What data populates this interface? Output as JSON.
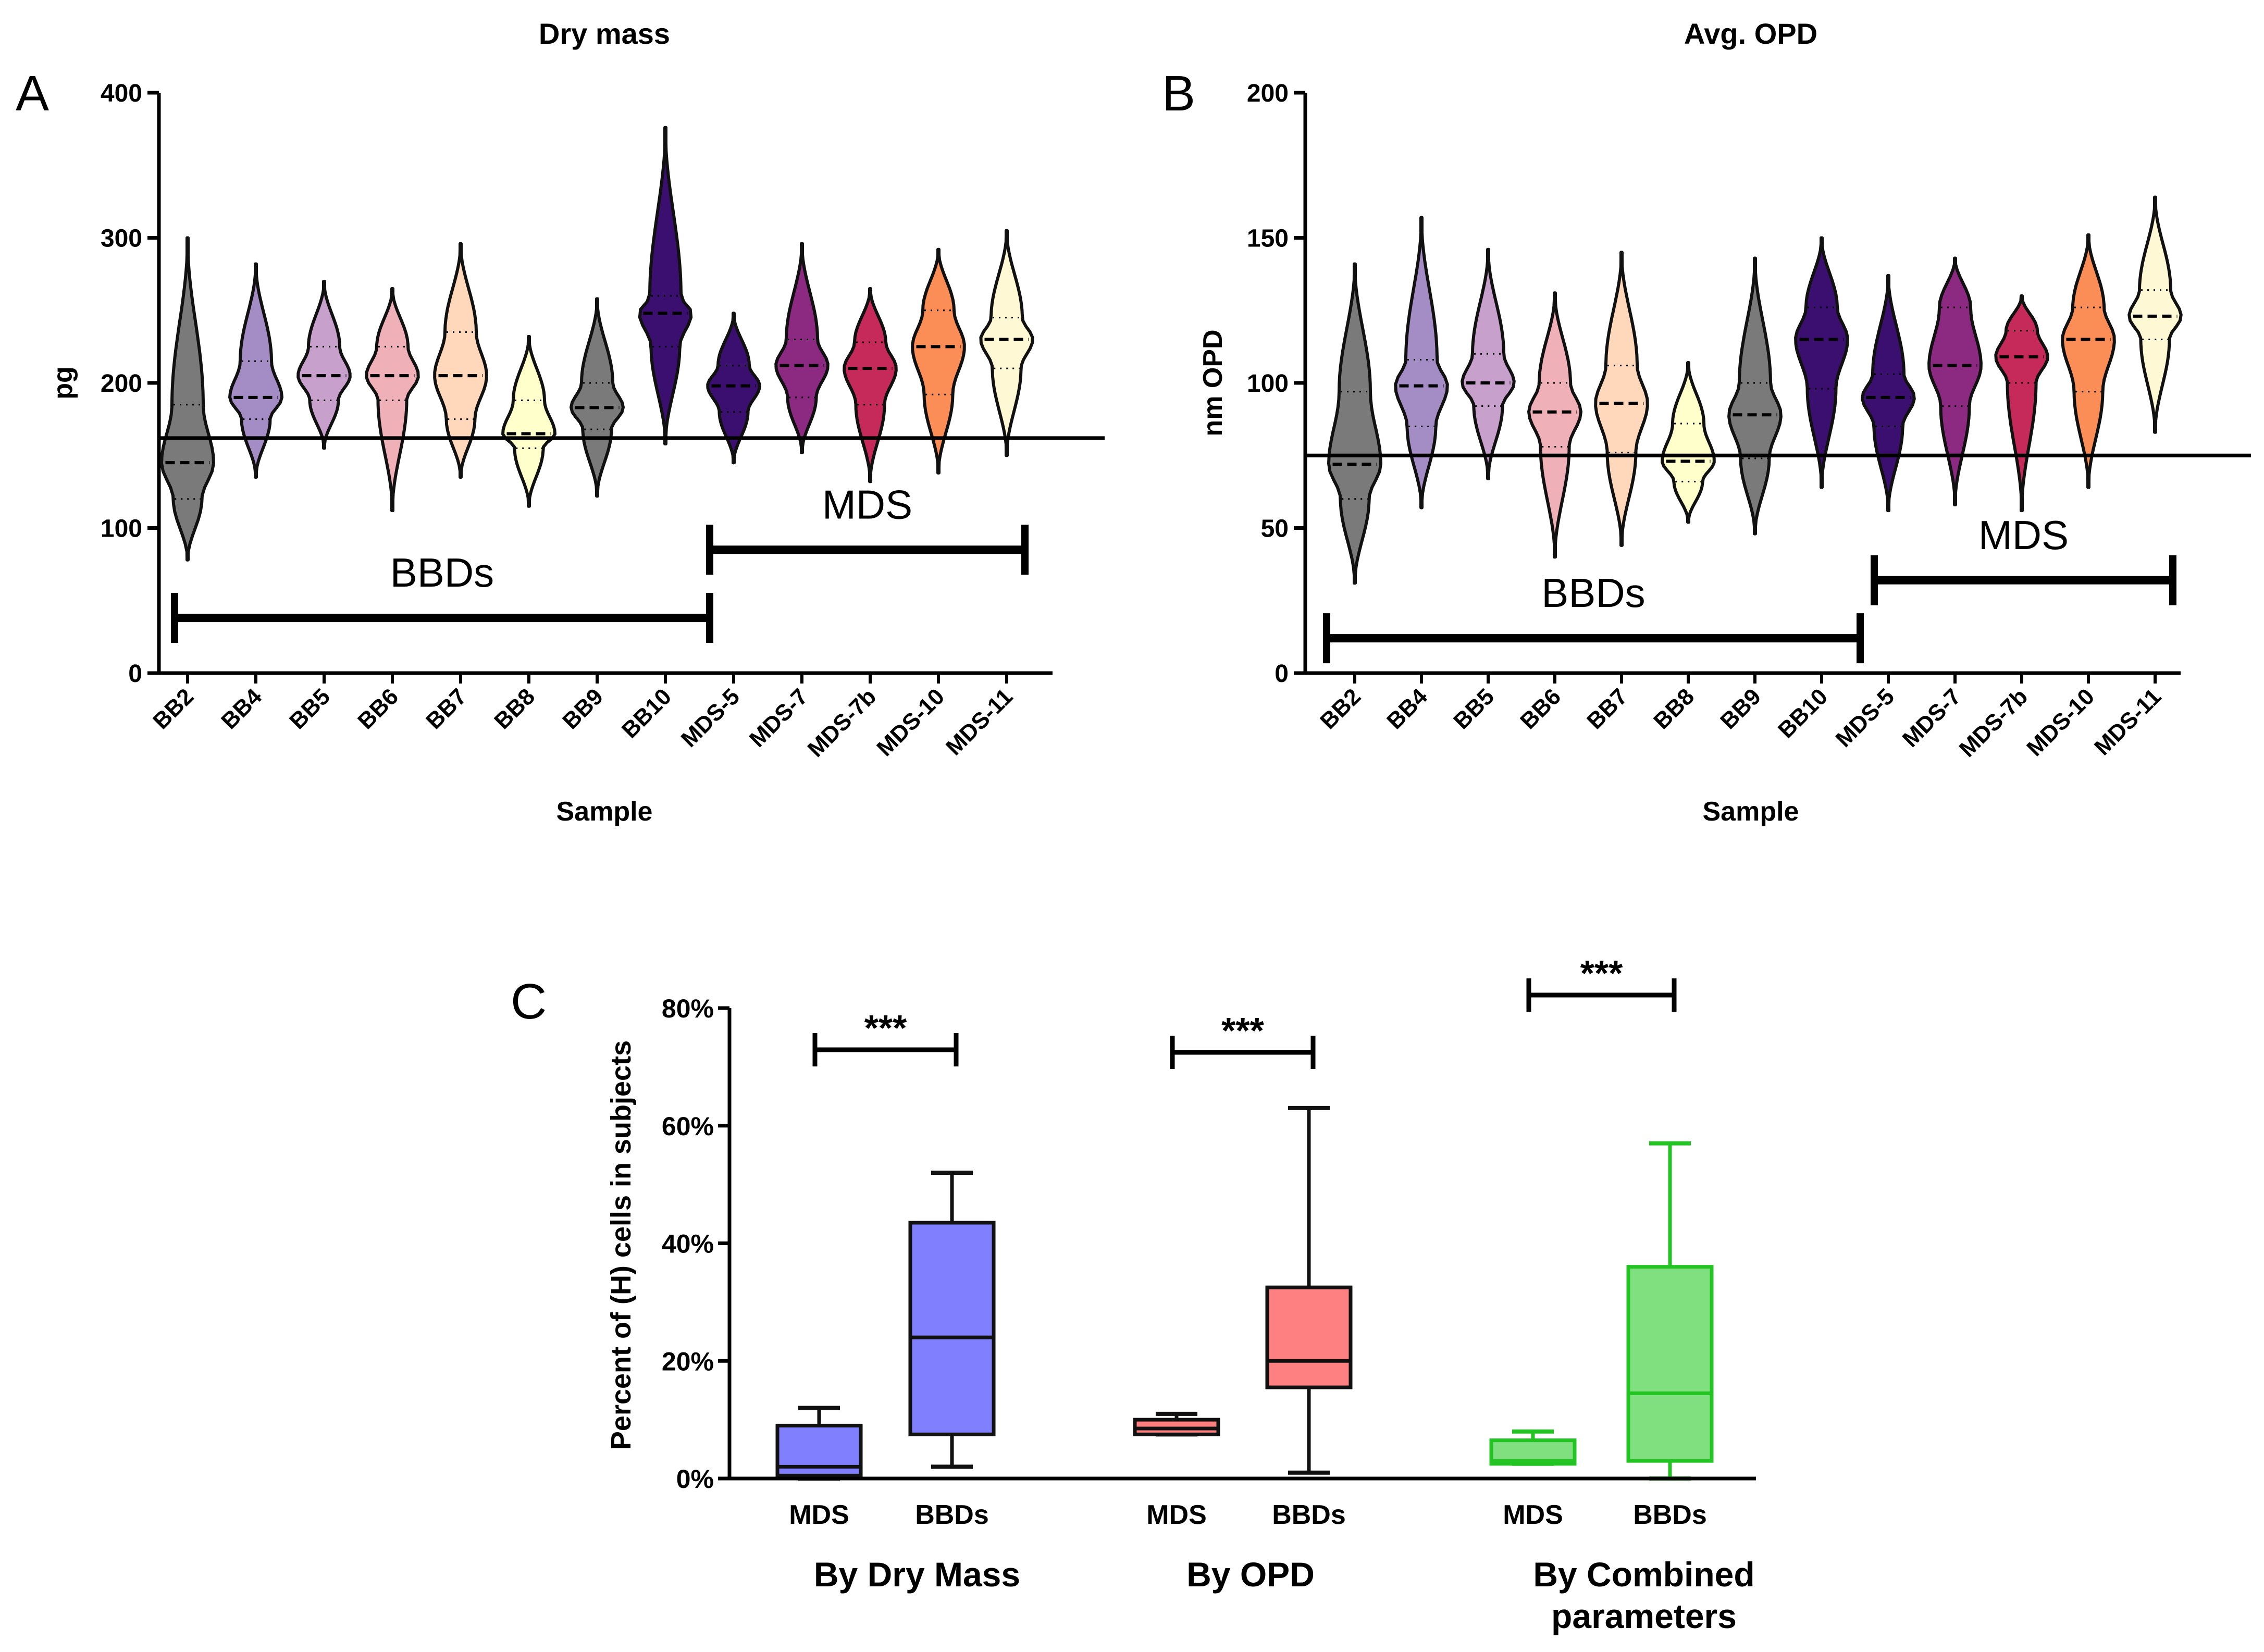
{
  "panel_letters": {
    "a": "A",
    "b": "B",
    "c": "C"
  },
  "group_labels": {
    "bbds": "BBDs",
    "mds": "MDS"
  },
  "chart_data": [
    {
      "type": "violin",
      "panel": "A",
      "title": "Dry mass",
      "xlabel": "Sample",
      "ylabel": "pg",
      "ylim": [
        0,
        400
      ],
      "yticks": [
        "0",
        "100",
        "200",
        "300",
        "400"
      ],
      "threshold": 162,
      "categories": [
        "BB2",
        "BB4",
        "BB5",
        "BB6",
        "BB7",
        "BB8",
        "BB9",
        "BB10",
        "MDS-5",
        "MDS-7",
        "MDS-7b",
        "MDS-10",
        "MDS-11"
      ],
      "colors": [
        "#7a7a7a",
        "#a48cc4",
        "#c8a0cc",
        "#f0b0b8",
        "#ffd8bc",
        "#ffffcc",
        "#7a7a7a",
        "#3b0f70",
        "#3b0f70",
        "#8c2981",
        "#c62a5a",
        "#fb8e56",
        "#fff8d4"
      ],
      "min": [
        78,
        135,
        155,
        112,
        135,
        115,
        122,
        158,
        145,
        152,
        132,
        138,
        150
      ],
      "q1": [
        120,
        175,
        188,
        188,
        175,
        155,
        168,
        225,
        180,
        190,
        185,
        192,
        210
      ],
      "median": [
        145,
        190,
        205,
        205,
        205,
        165,
        183,
        248,
        198,
        212,
        210,
        225,
        230
      ],
      "q3": [
        185,
        215,
        225,
        225,
        235,
        188,
        200,
        260,
        212,
        230,
        228,
        250,
        245
      ],
      "max": [
        300,
        282,
        270,
        265,
        296,
        232,
        258,
        376,
        248,
        296,
        265,
        292,
        305
      ],
      "bracket_bbds": {
        "label": "BBDs",
        "from": "BB2",
        "to": "BB10",
        "y": 38
      },
      "bracket_mds": {
        "label": "MDS",
        "from": "MDS-5",
        "to": "MDS-11",
        "y": 85
      }
    },
    {
      "type": "violin",
      "panel": "B",
      "title": "Avg. OPD",
      "xlabel": "Sample",
      "ylabel": "nm OPD",
      "ylim": [
        0,
        200
      ],
      "yticks": [
        "0",
        "50",
        "100",
        "150",
        "200"
      ],
      "threshold": 75,
      "categories": [
        "BB2",
        "BB4",
        "BB5",
        "BB6",
        "BB7",
        "BB8",
        "BB9",
        "BB10",
        "MDS-5",
        "MDS-7",
        "MDS-7b",
        "MDS-10",
        "MDS-11"
      ],
      "colors": [
        "#7a7a7a",
        "#a48cc4",
        "#c8a0cc",
        "#f0b0b8",
        "#ffd8bc",
        "#ffffcc",
        "#7a7a7a",
        "#3b0f70",
        "#3b0f70",
        "#8c2981",
        "#c62a5a",
        "#fb8e56",
        "#fff8d4"
      ],
      "min": [
        31,
        57,
        67,
        40,
        44,
        52,
        48,
        64,
        56,
        58,
        56,
        64,
        83
      ],
      "q1": [
        60,
        85,
        92,
        78,
        76,
        66,
        74,
        98,
        85,
        92,
        100,
        97,
        115
      ],
      "median": [
        72,
        99,
        100,
        90,
        93,
        73,
        89,
        115,
        95,
        106,
        109,
        115,
        123
      ],
      "q3": [
        97,
        108,
        110,
        100,
        106,
        86,
        100,
        126,
        103,
        126,
        118,
        126,
        132
      ],
      "max": [
        141,
        157,
        146,
        131,
        145,
        107,
        143,
        150,
        137,
        143,
        130,
        151,
        164
      ],
      "bracket_bbds": {
        "label": "BBDs",
        "from": "BB2",
        "to": "BB10",
        "y": 12
      },
      "bracket_mds": {
        "label": "MDS",
        "from": "MDS-5",
        "to": "MDS-11",
        "y": 32
      }
    },
    {
      "type": "box",
      "panel": "C",
      "ylabel": "Percent of (H) cells in subjects",
      "ylim": [
        0,
        80
      ],
      "yticks": [
        "0%",
        "20%",
        "40%",
        "60%",
        "80%"
      ],
      "groups": [
        {
          "label": "By Dry Mass",
          "color": "#6b6bff",
          "boxes": [
            {
              "name": "MDS",
              "min": 0,
              "q1": 0.5,
              "median": 2,
              "q3": 9,
              "max": 12
            },
            {
              "name": "BBDs",
              "min": 2,
              "q1": 7.5,
              "median": 24,
              "q3": 43.5,
              "max": 52
            }
          ],
          "significance": "***"
        },
        {
          "label": "By OPD",
          "color": "#ff6b6b",
          "boxes": [
            {
              "name": "MDS",
              "min": 7.5,
              "q1": 7.5,
              "median": 8.5,
              "q3": 10,
              "max": 11
            },
            {
              "name": "BBDs",
              "min": 1,
              "q1": 15.5,
              "median": 20,
              "q3": 32.5,
              "max": 63
            }
          ],
          "significance": "***"
        },
        {
          "label": "By Combined parameters",
          "label_lines": [
            "By Combined",
            "parameters"
          ],
          "color": "#1ec81e",
          "boxes": [
            {
              "name": "MDS",
              "min": 2.5,
              "q1": 2.5,
              "median": 3,
              "q3": 6.5,
              "max": 8
            },
            {
              "name": "BBDs",
              "min": 0,
              "q1": 3,
              "median": 14.5,
              "q3": 36,
              "max": 57
            }
          ],
          "significance": "***"
        }
      ]
    }
  ]
}
